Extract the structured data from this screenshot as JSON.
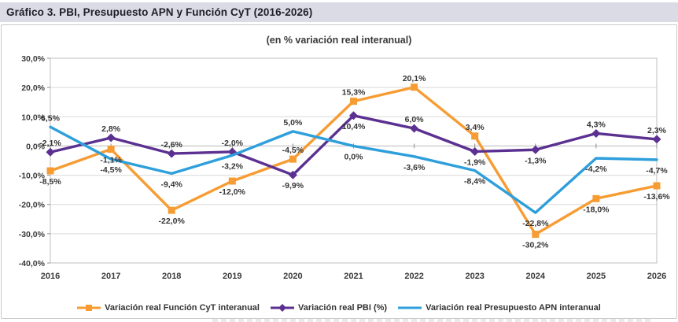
{
  "header": {
    "title": "Gráfico 3. PBI, Presupuesto APN y Función CyT (2016-2026)"
  },
  "colors": {
    "title_bar_bg": "#DBDBE6",
    "gridline": "#D9D9D9",
    "plot_border": "#BFBFBF",
    "axis_tick": "#8C8C8C",
    "axis_text": "#3A3A3A",
    "data_label_text": "#363636",
    "cyt_orange": "#F79C33",
    "pbi_purple": "#5B3091",
    "apn_blue": "#2E9FDB"
  },
  "chart_data": {
    "type": "line",
    "title": "Gráfico 3. PBI, Presupuesto APN y Función CyT (2016-2026)",
    "subtitle": "(en % variación real interanual)",
    "categories": [
      "2016",
      "2017",
      "2018",
      "2019",
      "2020",
      "2021",
      "2022",
      "2023",
      "2024",
      "2025",
      "2026"
    ],
    "ylim": [
      -40,
      30
    ],
    "ytick_values": [
      30,
      20,
      10,
      0,
      -10,
      -20,
      -30,
      -40
    ],
    "ytick_labels": [
      "30,0%",
      "20,0%",
      "10,0%",
      "0,0%",
      "-10,0%",
      "-20,0%",
      "-30,0%",
      "-40,0%"
    ],
    "grid": true,
    "legend_position": "bottom",
    "series": [
      {
        "name": "Variación real Función CyT interanual",
        "color": "#F79C33",
        "marker": "square",
        "values": [
          -8.5,
          -1.1,
          -22.0,
          -12.0,
          -4.5,
          15.3,
          20.1,
          3.4,
          -30.2,
          -18.0,
          -13.6
        ],
        "labels": [
          "-8,5%",
          "-1,1%",
          "-22,0%",
          "-12,0%",
          "-4,5%",
          "15,3%",
          "20,1%",
          "3,4%",
          "-30,2%",
          "-18,0%",
          "-13,6%"
        ],
        "label_positions": [
          "below",
          "below",
          "below",
          "below",
          "above",
          "above",
          "above",
          "above",
          "below",
          "below",
          "below"
        ]
      },
      {
        "name": "Variación real PBI (%)",
        "color": "#5B3091",
        "marker": "diamond",
        "values": [
          -2.1,
          2.8,
          -2.6,
          -2.0,
          -9.9,
          10.4,
          6.0,
          -1.9,
          -1.3,
          4.3,
          2.3
        ],
        "labels": [
          "-2,1%",
          "2,8%",
          "-2,6%",
          "-2,0%",
          "-9,9%",
          "10,4%",
          "6,0%",
          "-1,9%",
          "-1,3%",
          "4,3%",
          "2,3%"
        ],
        "label_positions": [
          "above",
          "above",
          "above",
          "above",
          "below",
          "below",
          "above",
          "below",
          "below",
          "above",
          "above"
        ]
      },
      {
        "name": "Variación real Presupuesto APN interanual",
        "color": "#2E9FDB",
        "marker": "none",
        "values": [
          6.5,
          -4.5,
          -9.4,
          -3.2,
          5.0,
          0.0,
          -3.6,
          -8.4,
          -22.8,
          -4.2,
          -4.7
        ],
        "labels": [
          "6,5%",
          "-4,5%",
          "-9,4%",
          "-3,2%",
          "5,0%",
          "0,0%",
          "-3,6%",
          "-8,4%",
          "-22,8%",
          "-4,2%",
          "-4,7%"
        ],
        "label_positions": [
          "above",
          "below",
          "below",
          "below",
          "above",
          "below",
          "below",
          "below",
          "below",
          "below",
          "below"
        ]
      }
    ]
  }
}
